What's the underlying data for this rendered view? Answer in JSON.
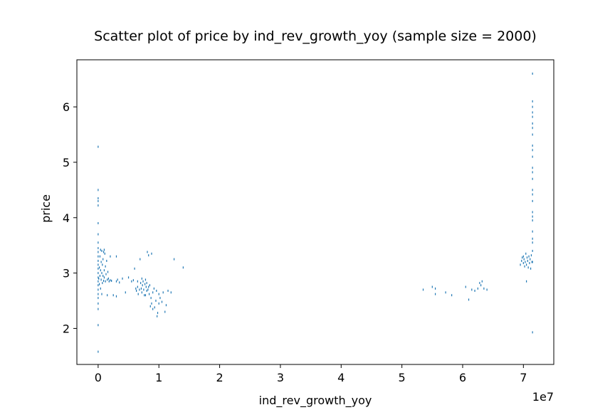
{
  "chart_data": {
    "type": "scatter",
    "title": "Scatter plot of price by ind_rev_growth_yoy (sample size = 2000)",
    "xlabel": "ind_rev_growth_yoy",
    "ylabel": "price",
    "x_offset_text": "1e7",
    "xlim": [
      -0.35,
      7.5
    ],
    "ylim": [
      1.35,
      6.85
    ],
    "x_scale_note": "x values shown in units of 1e7",
    "x_ticks": [
      0,
      1,
      2,
      3,
      4,
      5,
      6,
      7
    ],
    "x_tick_labels": [
      "0",
      "1",
      "2",
      "3",
      "4",
      "5",
      "6",
      "7"
    ],
    "y_ticks": [
      2,
      3,
      4,
      5,
      6
    ],
    "y_tick_labels": [
      "2",
      "3",
      "4",
      "5",
      "6"
    ],
    "grid": false,
    "marker_color": "#1f77b4",
    "series": [
      {
        "points": [
          [
            0.0,
            1.58
          ],
          [
            0.0,
            2.06
          ],
          [
            0.0,
            2.35
          ],
          [
            0.0,
            2.45
          ],
          [
            0.0,
            2.55
          ],
          [
            0.0,
            2.62
          ],
          [
            0.0,
            2.7
          ],
          [
            0.0,
            2.78
          ],
          [
            0.0,
            2.85
          ],
          [
            0.0,
            2.92
          ],
          [
            0.0,
            3.0
          ],
          [
            0.0,
            3.08
          ],
          [
            0.0,
            3.15
          ],
          [
            0.0,
            3.22
          ],
          [
            0.0,
            3.3
          ],
          [
            0.0,
            3.38
          ],
          [
            0.0,
            3.45
          ],
          [
            0.0,
            3.55
          ],
          [
            0.0,
            3.7
          ],
          [
            0.0,
            3.9
          ],
          [
            0.0,
            4.22
          ],
          [
            0.0,
            4.3
          ],
          [
            0.0,
            4.35
          ],
          [
            0.0,
            4.5
          ],
          [
            0.0,
            5.28
          ],
          [
            0.01,
            2.9
          ],
          [
            0.02,
            3.1
          ],
          [
            0.02,
            2.8
          ],
          [
            0.03,
            3.3
          ],
          [
            0.03,
            2.95
          ],
          [
            0.04,
            3.05
          ],
          [
            0.04,
            2.72
          ],
          [
            0.05,
            3.2
          ],
          [
            0.05,
            2.88
          ],
          [
            0.06,
            3.4
          ],
          [
            0.06,
            3.0
          ],
          [
            0.07,
            2.82
          ],
          [
            0.07,
            3.15
          ],
          [
            0.08,
            2.95
          ],
          [
            0.08,
            3.25
          ],
          [
            0.09,
            2.86
          ],
          [
            0.1,
            3.05
          ],
          [
            0.1,
            2.92
          ],
          [
            0.11,
            3.35
          ],
          [
            0.12,
            2.85
          ],
          [
            0.12,
            3.12
          ],
          [
            0.13,
            2.98
          ],
          [
            0.14,
            3.22
          ],
          [
            0.15,
            2.88
          ],
          [
            0.16,
            3.02
          ],
          [
            0.17,
            2.9
          ],
          [
            0.18,
            2.85
          ],
          [
            0.2,
            2.87
          ],
          [
            0.22,
            2.86
          ],
          [
            0.04,
            3.42
          ],
          [
            0.09,
            3.38
          ],
          [
            0.06,
            2.62
          ],
          [
            0.15,
            2.6
          ],
          [
            0.1,
            3.42
          ],
          [
            0.2,
            3.3
          ],
          [
            0.25,
            2.6
          ],
          [
            0.3,
            2.58
          ],
          [
            0.3,
            2.85
          ],
          [
            0.32,
            2.88
          ],
          [
            0.35,
            2.83
          ],
          [
            0.4,
            2.9
          ],
          [
            0.45,
            2.65
          ],
          [
            0.3,
            3.3
          ],
          [
            0.5,
            2.92
          ],
          [
            0.55,
            2.85
          ],
          [
            0.58,
            2.87
          ],
          [
            0.6,
            3.08
          ],
          [
            0.62,
            2.72
          ],
          [
            0.63,
            2.68
          ],
          [
            0.65,
            2.75
          ],
          [
            0.66,
            2.62
          ],
          [
            0.68,
            2.7
          ],
          [
            0.69,
            3.25
          ],
          [
            0.7,
            2.82
          ],
          [
            0.71,
            2.72
          ],
          [
            0.72,
            2.65
          ],
          [
            0.73,
            2.78
          ],
          [
            0.74,
            2.85
          ],
          [
            0.75,
            2.7
          ],
          [
            0.76,
            2.6
          ],
          [
            0.77,
            2.8
          ],
          [
            0.78,
            2.88
          ],
          [
            0.79,
            2.75
          ],
          [
            0.8,
            2.68
          ],
          [
            0.8,
            2.82
          ],
          [
            0.81,
            3.38
          ],
          [
            0.82,
            2.7
          ],
          [
            0.83,
            3.32
          ],
          [
            0.84,
            2.62
          ],
          [
            0.85,
            2.78
          ],
          [
            0.86,
            2.4
          ],
          [
            0.87,
            2.55
          ],
          [
            0.88,
            2.45
          ],
          [
            0.9,
            2.35
          ],
          [
            0.9,
            2.65
          ],
          [
            0.92,
            2.72
          ],
          [
            0.93,
            2.38
          ],
          [
            0.95,
            2.5
          ],
          [
            0.96,
            2.68
          ],
          [
            0.97,
            2.22
          ],
          [
            0.98,
            2.28
          ],
          [
            1.0,
            2.45
          ],
          [
            1.0,
            2.62
          ],
          [
            1.02,
            2.55
          ],
          [
            1.05,
            2.48
          ],
          [
            1.07,
            2.65
          ],
          [
            1.1,
            2.3
          ],
          [
            1.12,
            2.42
          ],
          [
            1.15,
            2.68
          ],
          [
            1.2,
            2.65
          ],
          [
            1.25,
            3.25
          ],
          [
            1.4,
            3.1
          ],
          [
            0.88,
            3.35
          ],
          [
            0.72,
            2.9
          ],
          [
            0.65,
            2.85
          ],
          [
            0.78,
            2.6
          ],
          [
            0.83,
            2.75
          ],
          [
            5.35,
            2.7
          ],
          [
            5.5,
            2.75
          ],
          [
            5.55,
            2.62
          ],
          [
            5.55,
            2.72
          ],
          [
            5.72,
            2.65
          ],
          [
            5.82,
            2.6
          ],
          [
            6.05,
            2.75
          ],
          [
            6.1,
            2.52
          ],
          [
            6.15,
            2.7
          ],
          [
            6.2,
            2.68
          ],
          [
            6.25,
            2.72
          ],
          [
            6.28,
            2.82
          ],
          [
            6.3,
            2.78
          ],
          [
            6.32,
            2.85
          ],
          [
            6.35,
            2.72
          ],
          [
            6.4,
            2.7
          ],
          [
            6.95,
            3.15
          ],
          [
            6.97,
            3.22
          ],
          [
            6.98,
            3.28
          ],
          [
            7.0,
            3.18
          ],
          [
            7.0,
            3.3
          ],
          [
            7.01,
            3.25
          ],
          [
            7.02,
            3.12
          ],
          [
            7.03,
            3.2
          ],
          [
            7.04,
            3.35
          ],
          [
            7.05,
            3.15
          ],
          [
            7.05,
            2.85
          ],
          [
            7.06,
            3.28
          ],
          [
            7.07,
            3.22
          ],
          [
            7.08,
            3.1
          ],
          [
            7.09,
            3.3
          ],
          [
            7.1,
            3.18
          ],
          [
            7.11,
            3.25
          ],
          [
            7.12,
            3.08
          ],
          [
            7.13,
            3.32
          ],
          [
            7.14,
            3.2
          ],
          [
            7.15,
            3.4
          ],
          [
            7.15,
            3.55
          ],
          [
            7.15,
            3.75
          ],
          [
            7.15,
            3.95
          ],
          [
            7.15,
            4.1
          ],
          [
            7.15,
            4.3
          ],
          [
            7.15,
            4.5
          ],
          [
            7.15,
            4.7
          ],
          [
            7.15,
            4.9
          ],
          [
            7.15,
            5.1
          ],
          [
            7.15,
            5.3
          ],
          [
            7.15,
            5.5
          ],
          [
            7.15,
            5.7
          ],
          [
            7.15,
            5.9
          ],
          [
            7.15,
            6.1
          ],
          [
            7.15,
            6.6
          ],
          [
            7.15,
            1.93
          ],
          [
            7.15,
            3.2
          ],
          [
            7.15,
            3.62
          ],
          [
            7.15,
            4.02
          ],
          [
            7.15,
            4.42
          ],
          [
            7.15,
            4.82
          ],
          [
            7.15,
            5.22
          ],
          [
            7.15,
            5.62
          ],
          [
            7.15,
            5.82
          ],
          [
            7.15,
            6.0
          ]
        ]
      }
    ]
  }
}
